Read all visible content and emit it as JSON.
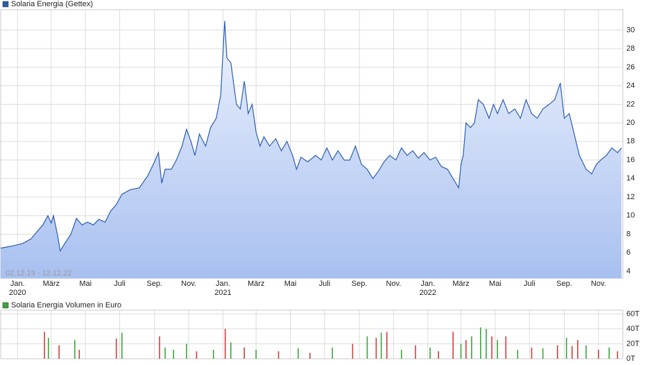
{
  "chart_data": [
    {
      "type": "area",
      "title": "Solaria Energia (Gettex)",
      "color": "#2a5db0",
      "range_label": "02.12.19 - 12.12.22",
      "x": [
        "2019-12-02",
        "2019-12-20",
        "2020-01-10",
        "2020-01-25",
        "2020-02-05",
        "2020-02-15",
        "2020-02-24",
        "2020-03-01",
        "2020-03-05",
        "2020-03-12",
        "2020-03-17",
        "2020-03-25",
        "2020-04-05",
        "2020-04-15",
        "2020-04-25",
        "2020-05-05",
        "2020-05-15",
        "2020-05-25",
        "2020-06-05",
        "2020-06-15",
        "2020-06-25",
        "2020-07-05",
        "2020-07-20",
        "2020-08-05",
        "2020-08-20",
        "2020-09-01",
        "2020-09-08",
        "2020-09-14",
        "2020-09-20",
        "2020-10-01",
        "2020-10-10",
        "2020-10-20",
        "2020-10-28",
        "2020-11-05",
        "2020-11-12",
        "2020-11-20",
        "2020-12-01",
        "2020-12-10",
        "2020-12-20",
        "2020-12-28",
        "2021-01-04",
        "2021-01-08",
        "2021-01-15",
        "2021-01-25",
        "2021-02-01",
        "2021-02-08",
        "2021-02-15",
        "2021-02-22",
        "2021-03-01",
        "2021-03-08",
        "2021-03-15",
        "2021-03-25",
        "2021-04-05",
        "2021-04-15",
        "2021-04-25",
        "2021-05-05",
        "2021-05-12",
        "2021-05-20",
        "2021-06-01",
        "2021-06-15",
        "2021-06-25",
        "2021-07-05",
        "2021-07-15",
        "2021-07-25",
        "2021-08-05",
        "2021-08-15",
        "2021-08-25",
        "2021-09-05",
        "2021-09-15",
        "2021-09-25",
        "2021-10-05",
        "2021-10-15",
        "2021-10-25",
        "2021-11-05",
        "2021-11-15",
        "2021-11-25",
        "2021-12-05",
        "2021-12-15",
        "2021-12-25",
        "2022-01-05",
        "2022-01-15",
        "2022-01-25",
        "2022-02-05",
        "2022-02-15",
        "2022-02-25",
        "2022-03-01",
        "2022-03-05",
        "2022-03-10",
        "2022-03-18",
        "2022-03-25",
        "2022-04-01",
        "2022-04-10",
        "2022-04-20",
        "2022-04-28",
        "2022-05-05",
        "2022-05-15",
        "2022-05-25",
        "2022-06-05",
        "2022-06-15",
        "2022-06-25",
        "2022-07-05",
        "2022-07-15",
        "2022-07-25",
        "2022-08-05",
        "2022-08-15",
        "2022-08-25",
        "2022-09-01",
        "2022-09-10",
        "2022-09-20",
        "2022-09-28",
        "2022-10-10",
        "2022-10-20",
        "2022-10-28",
        "2022-11-05",
        "2022-11-15",
        "2022-11-25",
        "2022-12-05",
        "2022-12-12"
      ],
      "values": [
        6.5,
        6.7,
        7.0,
        7.5,
        8.3,
        9.0,
        10.0,
        9.2,
        10.0,
        8.0,
        6.2,
        7.0,
        8.0,
        9.7,
        9.0,
        9.3,
        9.0,
        9.6,
        9.3,
        10.5,
        11.2,
        12.3,
        12.8,
        13.0,
        14.3,
        15.8,
        16.8,
        13.5,
        15.0,
        15.0,
        16.0,
        17.5,
        19.3,
        18.0,
        16.5,
        18.8,
        17.5,
        19.5,
        20.5,
        23.0,
        31.0,
        27.0,
        26.5,
        22.0,
        21.5,
        24.5,
        21.0,
        22.0,
        19.0,
        17.5,
        18.5,
        17.5,
        18.3,
        17.0,
        18.0,
        16.5,
        15.0,
        16.3,
        15.8,
        16.5,
        16.0,
        17.3,
        16.0,
        17.0,
        16.0,
        16.0,
        17.5,
        15.5,
        15.0,
        14.0,
        14.8,
        15.8,
        16.5,
        16.0,
        17.3,
        16.5,
        17.0,
        16.2,
        16.8,
        16.0,
        16.3,
        15.3,
        15.0,
        14.0,
        13.0,
        15.5,
        16.5,
        20.0,
        19.5,
        20.0,
        22.5,
        22.0,
        20.5,
        22.0,
        21.0,
        22.5,
        21.0,
        21.5,
        20.5,
        22.5,
        21.0,
        20.5,
        21.5,
        22.0,
        22.5,
        24.3,
        20.5,
        21.0,
        18.5,
        16.5,
        15.0,
        14.5,
        15.5,
        16.0,
        16.5,
        17.3,
        16.8,
        17.3
      ],
      "xlim": [
        "2019-12-02",
        "2022-12-12"
      ],
      "xticks": [
        {
          "value": "2020-01-01",
          "label": "Jan."
        },
        {
          "value": "2020-03-01",
          "label": "März"
        },
        {
          "value": "2020-05-01",
          "label": "Mai"
        },
        {
          "value": "2020-07-01",
          "label": "Juli"
        },
        {
          "value": "2020-09-01",
          "label": "Sep."
        },
        {
          "value": "2020-11-01",
          "label": "Nov."
        },
        {
          "value": "2021-01-01",
          "label": "Jan."
        },
        {
          "value": "2021-03-01",
          "label": "März"
        },
        {
          "value": "2021-05-01",
          "label": "Mai"
        },
        {
          "value": "2021-07-01",
          "label": "Juli"
        },
        {
          "value": "2021-09-01",
          "label": "Sep."
        },
        {
          "value": "2021-11-01",
          "label": "Nov."
        },
        {
          "value": "2022-01-01",
          "label": "Jan."
        },
        {
          "value": "2022-03-01",
          "label": "März"
        },
        {
          "value": "2022-05-01",
          "label": "Mai"
        },
        {
          "value": "2022-07-01",
          "label": "Juli"
        },
        {
          "value": "2022-09-01",
          "label": "Sep."
        },
        {
          "value": "2022-11-01",
          "label": "Nov."
        }
      ],
      "year_labels": [
        {
          "value": "2020-01-01",
          "label": "2020"
        },
        {
          "value": "2021-01-01",
          "label": "2021"
        },
        {
          "value": "2022-01-01",
          "label": "2022"
        }
      ],
      "ylim": [
        3.25,
        32.2
      ],
      "yticks": [
        4,
        6,
        8,
        10,
        12,
        14,
        16,
        18,
        20,
        22,
        24,
        26,
        28,
        30
      ],
      "grid": true
    },
    {
      "type": "bar",
      "title": "Solaria Energia Volumen in Euro",
      "color": "#3aa53a",
      "x": [
        "2020-02-18",
        "2020-02-25",
        "2020-03-15",
        "2020-04-12",
        "2020-04-20",
        "2020-06-25",
        "2020-07-05",
        "2020-09-10",
        "2020-09-20",
        "2020-10-05",
        "2020-10-28",
        "2020-11-15",
        "2020-12-15",
        "2021-01-05",
        "2021-01-15",
        "2021-02-08",
        "2021-03-01",
        "2021-04-10",
        "2021-05-15",
        "2021-06-05",
        "2021-07-15",
        "2021-08-20",
        "2021-09-15",
        "2021-10-01",
        "2021-10-10",
        "2021-10-20",
        "2021-11-15",
        "2021-12-10",
        "2022-01-05",
        "2022-01-20",
        "2022-02-15",
        "2022-03-01",
        "2022-03-10",
        "2022-03-20",
        "2022-04-05",
        "2022-04-15",
        "2022-04-25",
        "2022-05-05",
        "2022-05-20",
        "2022-06-10",
        "2022-07-05",
        "2022-07-25",
        "2022-08-20",
        "2022-09-05",
        "2022-09-15",
        "2022-09-25",
        "2022-10-10",
        "2022-11-01",
        "2022-11-20",
        "2022-12-05"
      ],
      "values": [
        36,
        28,
        18,
        25,
        12,
        27,
        35,
        30,
        15,
        12,
        20,
        10,
        12,
        40,
        22,
        15,
        12,
        10,
        14,
        8,
        15,
        20,
        30,
        28,
        35,
        36,
        12,
        18,
        15,
        10,
        36,
        20,
        25,
        30,
        42,
        40,
        30,
        25,
        30,
        12,
        15,
        14,
        18,
        28,
        17,
        25,
        18,
        12,
        15,
        10
      ],
      "bar_colors": [
        "#d23c3c",
        "#3aa53a",
        "#d23c3c",
        "#3aa53a",
        "#d23c3c",
        "#d23c3c",
        "#3aa53a",
        "#d23c3c",
        "#3aa53a",
        "#3aa53a",
        "#3aa53a",
        "#d23c3c",
        "#3aa53a",
        "#d23c3c",
        "#3aa53a",
        "#d23c3c",
        "#3aa53a",
        "#d23c3c",
        "#3aa53a",
        "#d23c3c",
        "#3aa53a",
        "#d23c3c",
        "#3aa53a",
        "#d23c3c",
        "#3aa53a",
        "#d23c3c",
        "#3aa53a",
        "#d23c3c",
        "#3aa53a",
        "#d23c3c",
        "#d23c3c",
        "#3aa53a",
        "#d23c3c",
        "#3aa53a",
        "#3aa53a",
        "#3aa53a",
        "#d23c3c",
        "#3aa53a",
        "#d23c3c",
        "#3aa53a",
        "#d23c3c",
        "#3aa53a",
        "#d23c3c",
        "#3aa53a",
        "#d23c3c",
        "#d23c3c",
        "#3aa53a",
        "#d23c3c",
        "#3aa53a",
        "#d23c3c"
      ],
      "xlim": [
        "2019-12-02",
        "2022-12-12"
      ],
      "ylim": [
        0,
        65
      ],
      "yticks": [
        {
          "value": 0,
          "label": "0T"
        },
        {
          "value": 20,
          "label": "20T"
        },
        {
          "value": 40,
          "label": "40T"
        },
        {
          "value": 60,
          "label": "60T"
        }
      ],
      "grid": true
    }
  ]
}
